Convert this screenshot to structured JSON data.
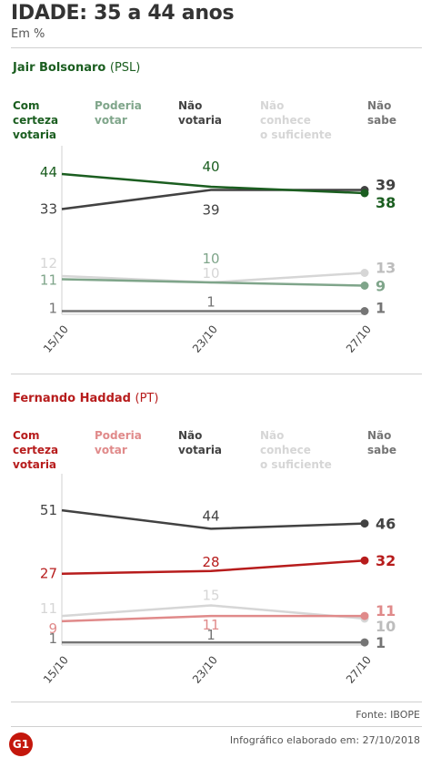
{
  "header": {
    "title": "IDADE: 35 a 44 anos",
    "subtitle": "Em %"
  },
  "colors": {
    "com_certeza_bolsonaro": "#1b5e20",
    "poderia_bolsonaro": "#7fa58a",
    "com_certeza_haddad": "#b71c1c",
    "poderia_haddad": "#e08a8a",
    "nao_votaria": "#424242",
    "nao_conhece": "#d6d6d6",
    "nao_sabe": "#757575"
  },
  "chart_data": [
    {
      "type": "line",
      "candidate": "Jair Bolsonaro",
      "party": "(PSL)",
      "x": [
        "15/10",
        "23/10",
        "27/10"
      ],
      "legend": [
        {
          "key": "com_certeza",
          "lines": [
            "Com",
            "certeza",
            "votaria"
          ]
        },
        {
          "key": "poderia",
          "lines": [
            "Poderia",
            "votar"
          ]
        },
        {
          "key": "nao_votaria",
          "lines": [
            "Não",
            "votaria"
          ]
        },
        {
          "key": "nao_conhece",
          "lines": [
            "Não",
            "conhece",
            "o suficiente"
          ]
        },
        {
          "key": "nao_sabe",
          "lines": [
            "Não",
            "sabe"
          ]
        }
      ],
      "series": [
        {
          "name": "Com certeza votaria",
          "key": "com_certeza",
          "values": [
            44,
            40,
            38
          ]
        },
        {
          "name": "Poderia votar",
          "key": "poderia",
          "values": [
            11,
            10,
            9
          ]
        },
        {
          "name": "Não votaria",
          "key": "nao_votaria",
          "values": [
            33,
            39,
            39
          ]
        },
        {
          "name": "Não conhece o suficiente",
          "key": "nao_conhece",
          "values": [
            12,
            10,
            13
          ]
        },
        {
          "name": "Não sabe",
          "key": "nao_sabe",
          "values": [
            1,
            1,
            1
          ]
        }
      ]
    },
    {
      "type": "line",
      "candidate": "Fernando Haddad",
      "party": "(PT)",
      "x": [
        "15/10",
        "23/10",
        "27/10"
      ],
      "legend": [
        {
          "key": "com_certeza",
          "lines": [
            "Com",
            "certeza",
            "votaria"
          ]
        },
        {
          "key": "poderia",
          "lines": [
            "Poderia",
            "votar"
          ]
        },
        {
          "key": "nao_votaria",
          "lines": [
            "Não",
            "votaria"
          ]
        },
        {
          "key": "nao_conhece",
          "lines": [
            "Não",
            "conhece",
            "o suficiente"
          ]
        },
        {
          "key": "nao_sabe",
          "lines": [
            "Não",
            "sabe"
          ]
        }
      ],
      "series": [
        {
          "name": "Com certeza votaria",
          "key": "com_certeza",
          "values": [
            27,
            28,
            32
          ]
        },
        {
          "name": "Poderia votar",
          "key": "poderia",
          "values": [
            9,
            11,
            11
          ]
        },
        {
          "name": "Não votaria",
          "key": "nao_votaria",
          "values": [
            51,
            44,
            46
          ]
        },
        {
          "name": "Não conhece o suficiente",
          "key": "nao_conhece",
          "values": [
            11,
            15,
            10
          ]
        },
        {
          "name": "Não sabe",
          "key": "nao_sabe",
          "values": [
            1,
            1,
            1
          ]
        }
      ]
    }
  ],
  "footer": {
    "source": "Fonte: IBOPE",
    "credit": "Infográfico elaborado em: 27/10/2018",
    "logo": "G1"
  }
}
